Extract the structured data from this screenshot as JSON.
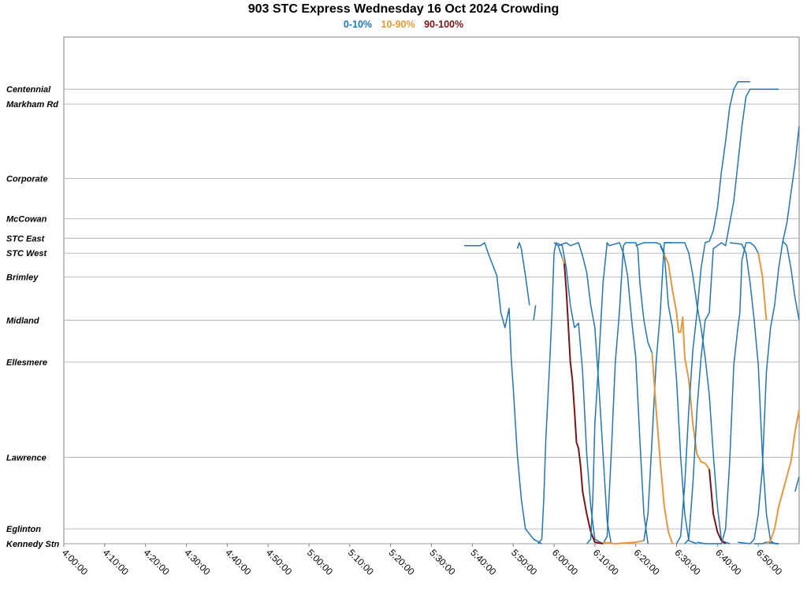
{
  "chart_data": {
    "type": "line",
    "title": "903 STC Express Wednesday 16 Oct 2024 Crowding",
    "legend": [
      {
        "label": "0-10%",
        "color": "#1f77b4"
      },
      {
        "label": "10-90%",
        "color": "#e8983a"
      },
      {
        "label": "90-100%",
        "color": "#7a1416"
      }
    ],
    "legend_placement": "top-center",
    "x_range": [
      "4:00:00",
      "7:00:00"
    ],
    "x_ticks": [
      "4:00:00",
      "4:10:00",
      "4:20:00",
      "4:30:00",
      "4:40:00",
      "4:50:00",
      "5:00:00",
      "5:10:00",
      "5:20:00",
      "5:30:00",
      "5:40:00",
      "5:50:00",
      "6:00:00",
      "6:10:00",
      "6:20:00",
      "6:30:00",
      "6:40:00",
      "6:50:00"
    ],
    "stops": [
      {
        "name": "Centennial",
        "km": 30.5
      },
      {
        "name": "Markham Rd",
        "km": 29.5
      },
      {
        "name": "Corporate",
        "km": 24.5
      },
      {
        "name": "McCowan",
        "km": 21.8
      },
      {
        "name": "STC East",
        "km": 20.5
      },
      {
        "name": "STC West",
        "km": 19.5
      },
      {
        "name": "Brimley",
        "km": 17.9
      },
      {
        "name": "Midland",
        "km": 15.0
      },
      {
        "name": "Ellesmere",
        "km": 12.2
      },
      {
        "name": "Lawrence",
        "km": 5.8
      },
      {
        "name": "Eglinton",
        "km": 1.0
      },
      {
        "name": "Kennedy Stn",
        "km": 0.0
      }
    ],
    "y_range": [
      0,
      34
    ],
    "grid": "horizontal at stops",
    "series": [
      {
        "color": "#1f77b4",
        "points": [
          [
            "5:38",
            20.0
          ],
          [
            "5:42",
            20.0
          ],
          [
            "5:43",
            20.2
          ],
          [
            "5:44",
            19.4
          ],
          [
            "5:46",
            18.0
          ],
          [
            "5:47",
            15.5
          ],
          [
            "5:48",
            14.5
          ],
          [
            "5:49",
            15.8
          ],
          [
            "5:49.5",
            12.5
          ],
          [
            "5:50",
            10.5
          ],
          [
            "5:51",
            6.0
          ],
          [
            "5:52",
            3.0
          ],
          [
            "5:53",
            1.0
          ],
          [
            "5:55",
            0.3
          ],
          [
            "5:57",
            0.0
          ]
        ]
      },
      {
        "color": "#1f77b4",
        "points": [
          [
            "5:51",
            19.8
          ],
          [
            "5:51.5",
            20.2
          ],
          [
            "5:52",
            19.8
          ],
          [
            "5:53",
            18.0
          ],
          [
            "5:54",
            16.0
          ]
        ]
      },
      {
        "color": "#1f77b4",
        "points": [
          [
            "5:55",
            15.0
          ],
          [
            "5:55.5",
            16.0
          ]
        ]
      },
      {
        "color": "#1f77b4",
        "points": [
          [
            "5:56",
            0.0
          ],
          [
            "5:57",
            0.3
          ],
          [
            "5:57.5",
            3.0
          ],
          [
            "5:58",
            7.0
          ],
          [
            "5:59",
            12.5
          ],
          [
            "5:59.5",
            15.5
          ],
          [
            "6:00",
            19.5
          ],
          [
            "6:00.5",
            20.2
          ],
          [
            "6:02",
            20.0
          ],
          [
            "6:03",
            18.5
          ],
          [
            "6:04",
            16.0
          ],
          [
            "6:05",
            14.5
          ],
          [
            "6:06",
            14.8
          ],
          [
            "6:07",
            11.5
          ],
          [
            "6:08",
            6.0
          ],
          [
            "6:09",
            2.5
          ],
          [
            "6:10",
            0.3
          ],
          [
            "6:12",
            0.0
          ]
        ]
      },
      {
        "color": "#1f77b4",
        "points": [
          [
            "6:00",
            20.2
          ],
          [
            "6:01",
            20.0
          ],
          [
            "6:02",
            19.2
          ]
        ]
      },
      {
        "color": "#e8983a",
        "points": [
          [
            "6:02",
            19.2
          ],
          [
            "6:02.5",
            18.8
          ]
        ]
      },
      {
        "color": "#7a1416",
        "points": [
          [
            "6:02.5",
            18.8
          ],
          [
            "6:03",
            17.0
          ],
          [
            "6:04",
            12.2
          ],
          [
            "6:04.5",
            11.0
          ],
          [
            "6:05",
            9.0
          ],
          [
            "6:05.5",
            6.8
          ],
          [
            "6:06",
            6.4
          ],
          [
            "6:06.5",
            5.2
          ],
          [
            "6:07",
            3.5
          ],
          [
            "6:08",
            2.0
          ],
          [
            "6:09",
            0.8
          ],
          [
            "6:10",
            0.1
          ],
          [
            "6:12",
            0.0
          ]
        ]
      },
      {
        "color": "#1f77b4",
        "points": [
          [
            "6:01",
            20.0
          ],
          [
            "6:03",
            20.2
          ],
          [
            "6:04",
            20.0
          ],
          [
            "6:06",
            20.2
          ],
          [
            "6:07",
            19.3
          ],
          [
            "6:08",
            18.2
          ],
          [
            "6:09",
            16.0
          ],
          [
            "6:10",
            14.5
          ],
          [
            "6:11",
            10.5
          ],
          [
            "6:12",
            6.0
          ],
          [
            "6:13",
            1.5
          ],
          [
            "6:14",
            0.0
          ]
        ]
      },
      {
        "color": "#1f77b4",
        "points": [
          [
            "6:08",
            0.0
          ],
          [
            "6:09",
            0.3
          ],
          [
            "6:09.5",
            3.0
          ],
          [
            "6:10",
            8.0
          ],
          [
            "6:11",
            12.5
          ],
          [
            "6:11.5",
            15.0
          ],
          [
            "6:12",
            17.5
          ],
          [
            "6:13",
            20.2
          ],
          [
            "6:13.5",
            20.0
          ],
          [
            "6:16",
            20.2
          ],
          [
            "6:17",
            19.5
          ],
          [
            "6:18",
            18.0
          ],
          [
            "6:19",
            15.0
          ],
          [
            "6:20",
            12.5
          ],
          [
            "6:21",
            7.0
          ],
          [
            "6:22",
            2.0
          ],
          [
            "6:23",
            0.0
          ]
        ]
      },
      {
        "color": "#1f77b4",
        "points": [
          [
            "6:12",
            0.0
          ],
          [
            "6:13",
            0.5
          ],
          [
            "6:14",
            6.0
          ],
          [
            "6:15",
            12.2
          ],
          [
            "6:16",
            15.5
          ],
          [
            "6:17",
            20.0
          ],
          [
            "6:17.5",
            20.2
          ],
          [
            "6:20",
            20.2
          ],
          [
            "6:20.5",
            19.8
          ],
          [
            "6:21",
            17.5
          ],
          [
            "6:22",
            15.0
          ],
          [
            "6:23",
            13.5
          ],
          [
            "6:24",
            12.8
          ]
        ]
      },
      {
        "color": "#e8983a",
        "points": [
          [
            "6:12",
            0.1
          ],
          [
            "6:15",
            0.0
          ],
          [
            "6:20",
            0.1
          ],
          [
            "6:22",
            0.2
          ]
        ]
      },
      {
        "color": "#1f77b4",
        "points": [
          [
            "6:20",
            20.0
          ],
          [
            "6:22",
            20.2
          ],
          [
            "6:25",
            20.2
          ],
          [
            "6:26",
            20.1
          ],
          [
            "6:27",
            19.5
          ],
          [
            "6:28",
            16.0
          ],
          [
            "6:29",
            14.5
          ],
          [
            "6:30",
            11.0
          ],
          [
            "6:31",
            5.8
          ],
          [
            "6:32",
            2.0
          ],
          [
            "6:33",
            0.2
          ],
          [
            "6:35",
            0.0
          ]
        ]
      },
      {
        "color": "#1f77b4",
        "points": [
          [
            "6:22",
            0.2
          ],
          [
            "6:23",
            2.0
          ],
          [
            "6:24",
            7.0
          ],
          [
            "6:25",
            12.2
          ],
          [
            "6:26",
            15.5
          ],
          [
            "6:27",
            20.2
          ],
          [
            "6:29",
            20.2
          ]
        ]
      },
      {
        "color": "#e8983a",
        "points": [
          [
            "6:24",
            12.8
          ],
          [
            "6:25",
            9.0
          ],
          [
            "6:26",
            5.5
          ],
          [
            "6:27",
            2.5
          ],
          [
            "6:28",
            0.8
          ],
          [
            "6:29",
            0.0
          ]
        ]
      },
      {
        "color": "#1f77b4",
        "points": [
          [
            "6:27",
            20.2
          ],
          [
            "6:32",
            20.2
          ],
          [
            "6:33",
            19.5
          ],
          [
            "6:34",
            18.0
          ],
          [
            "6:35",
            16.0
          ],
          [
            "6:36",
            14.5
          ],
          [
            "6:37",
            12.5
          ],
          [
            "6:38",
            10.0
          ],
          [
            "6:39",
            6.0
          ],
          [
            "6:40",
            2.5
          ],
          [
            "6:41",
            0.2
          ],
          [
            "6:43",
            0.0
          ]
        ]
      },
      {
        "color": "#1f77b4",
        "points": [
          [
            "6:26",
            20.0
          ],
          [
            "6:27",
            19.4
          ]
        ]
      },
      {
        "color": "#e8983a",
        "points": [
          [
            "6:27",
            19.4
          ],
          [
            "6:28",
            18.8
          ],
          [
            "6:29",
            17.0
          ],
          [
            "6:30",
            15.5
          ],
          [
            "6:30.5",
            14.2
          ],
          [
            "6:31",
            14.2
          ],
          [
            "6:31.5",
            15.2
          ],
          [
            "6:32",
            12.5
          ],
          [
            "6:33",
            11.0
          ],
          [
            "6:34",
            8.0
          ],
          [
            "6:35",
            6.0
          ],
          [
            "6:36",
            5.5
          ],
          [
            "6:37",
            5.4
          ],
          [
            "6:38",
            5.0
          ]
        ]
      },
      {
        "color": "#7a1416",
        "points": [
          [
            "6:38",
            5.0
          ],
          [
            "6:39",
            2.0
          ],
          [
            "6:40",
            0.8
          ],
          [
            "6:41",
            0.2
          ],
          [
            "6:42",
            0.0
          ]
        ]
      },
      {
        "color": "#1f77b4",
        "points": [
          [
            "6:30",
            0.0
          ],
          [
            "6:31",
            0.5
          ],
          [
            "6:32",
            4.0
          ],
          [
            "6:33",
            9.0
          ],
          [
            "6:34",
            13.0
          ],
          [
            "6:35",
            15.5
          ],
          [
            "6:36",
            18.5
          ],
          [
            "6:37",
            20.2
          ],
          [
            "6:38",
            20.3
          ],
          [
            "6:39",
            21.0
          ],
          [
            "6:40",
            22.5
          ],
          [
            "6:41",
            25.0
          ],
          [
            "6:42",
            27.0
          ],
          [
            "6:43",
            29.3
          ],
          [
            "6:44",
            30.5
          ],
          [
            "6:45",
            31.0
          ],
          [
            "6:48",
            31.0
          ]
        ]
      },
      {
        "color": "#1f77b4",
        "points": [
          [
            "6:32",
            0.0
          ],
          [
            "6:33",
            0.3
          ],
          [
            "6:34",
            4.0
          ],
          [
            "6:35",
            9.0
          ],
          [
            "6:36",
            12.5
          ],
          [
            "6:37",
            15.0
          ],
          [
            "6:38",
            15.5
          ],
          [
            "6:39",
            19.8
          ],
          [
            "6:40",
            20.0
          ],
          [
            "6:41",
            20.2
          ],
          [
            "6:42",
            20.0
          ],
          [
            "6:43",
            21.5
          ],
          [
            "6:44",
            23.0
          ],
          [
            "6:45",
            25.5
          ],
          [
            "6:46",
            28.0
          ],
          [
            "6:47",
            30.0
          ],
          [
            "6:48",
            30.5
          ],
          [
            "6:55",
            30.5
          ]
        ]
      },
      {
        "color": "#1f77b4",
        "points": [
          [
            "6:35",
            0.1
          ],
          [
            "6:37",
            0.0
          ],
          [
            "6:41",
            0.0
          ],
          [
            "6:42",
            1.0
          ],
          [
            "6:43",
            5.5
          ],
          [
            "6:44",
            12.0
          ],
          [
            "6:45",
            14.5
          ],
          [
            "6:45.5",
            15.5
          ],
          [
            "6:46",
            19.0
          ],
          [
            "6:47",
            20.2
          ],
          [
            "6:48",
            20.2
          ],
          [
            "6:49",
            20.0
          ],
          [
            "6:50",
            19.5
          ]
        ]
      },
      {
        "color": "#e8983a",
        "points": [
          [
            "6:50",
            19.5
          ],
          [
            "6:51",
            18.0
          ],
          [
            "6:52",
            15.0
          ]
        ]
      },
      {
        "color": "#1f77b4",
        "points": [
          [
            "6:43",
            20.2
          ],
          [
            "6:46",
            20.1
          ],
          [
            "6:47",
            19.5
          ],
          [
            "6:48",
            17.5
          ],
          [
            "6:49",
            15.0
          ],
          [
            "6:50",
            12.0
          ],
          [
            "6:51",
            6.0
          ],
          [
            "6:52",
            2.0
          ],
          [
            "6:53",
            0.2
          ],
          [
            "6:54",
            0.0
          ],
          [
            "6:55",
            0.0
          ]
        ]
      },
      {
        "color": "#1f77b4",
        "points": [
          [
            "6:45",
            0.1
          ],
          [
            "6:48",
            0.0
          ],
          [
            "6:49",
            0.3
          ],
          [
            "6:50",
            2.0
          ],
          [
            "6:51",
            5.0
          ],
          [
            "6:52",
            11.5
          ],
          [
            "6:53",
            14.5
          ],
          [
            "6:54",
            16.0
          ],
          [
            "6:55",
            18.5
          ],
          [
            "6:56",
            20.3
          ],
          [
            "6:57",
            21.5
          ],
          [
            "6:58",
            23.5
          ],
          [
            "6:59",
            25.5
          ],
          [
            "7:00",
            28.0
          ]
        ]
      },
      {
        "color": "#1f77b4",
        "points": [
          [
            "6:49",
            0.0
          ],
          [
            "6:51",
            0.0
          ],
          [
            "6:52",
            0.1
          ],
          [
            "6:55",
            0.0
          ]
        ]
      },
      {
        "color": "#e8983a",
        "points": [
          [
            "6:52",
            0.0
          ],
          [
            "6:53",
            0.2
          ],
          [
            "6:54",
            1.0
          ],
          [
            "6:55",
            2.5
          ],
          [
            "6:56",
            3.5
          ],
          [
            "6:57",
            4.5
          ],
          [
            "6:58",
            5.5
          ],
          [
            "6:59",
            7.5
          ],
          [
            "7:00",
            9.0
          ]
        ]
      },
      {
        "color": "#1f77b4",
        "points": [
          [
            "6:56",
            20.3
          ],
          [
            "6:57",
            20.0
          ],
          [
            "6:58",
            18.5
          ],
          [
            "6:59",
            16.5
          ],
          [
            "7:00",
            15.0
          ]
        ]
      },
      {
        "color": "#1f77b4",
        "points": [
          [
            "6:59",
            3.5
          ],
          [
            "7:00",
            4.5
          ]
        ]
      }
    ]
  }
}
